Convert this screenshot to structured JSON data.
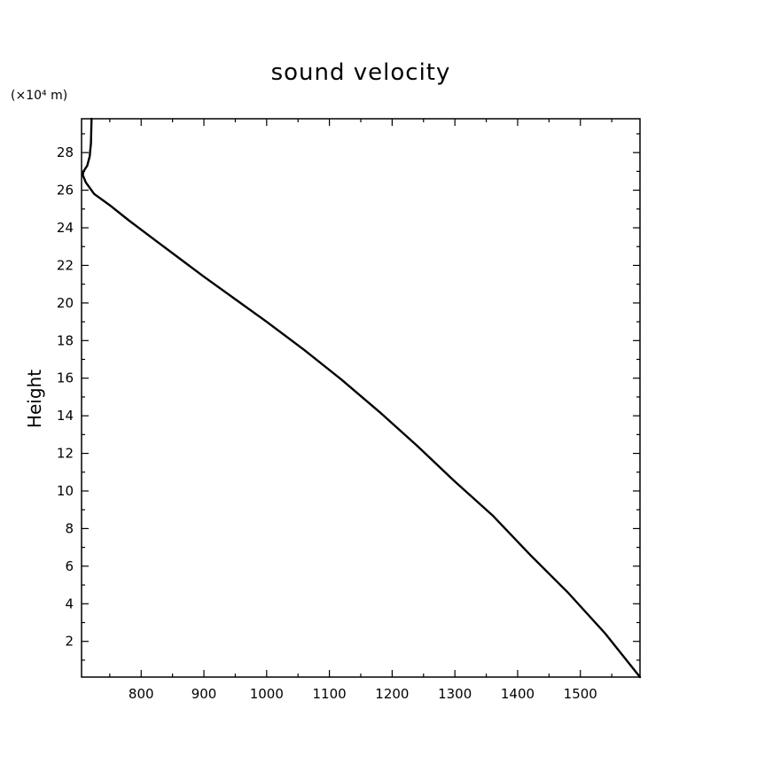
{
  "chart_data": {
    "type": "line",
    "title": "sound velocity",
    "xlabel": "",
    "ylabel": "Height",
    "y_unit": "(×10⁴ m)",
    "xlim": [
      705,
      1595
    ],
    "ylim": [
      0.1,
      29.8
    ],
    "x_ticks": [
      800,
      900,
      1000,
      1100,
      1200,
      1300,
      1400,
      1500
    ],
    "x_tick_labels": [
      "800",
      "900",
      "1000",
      "1100",
      "1200",
      "1300",
      "1400",
      "1500"
    ],
    "x_minor_step": 50,
    "y_ticks": [
      2,
      4,
      6,
      8,
      10,
      12,
      14,
      16,
      18,
      20,
      22,
      24,
      26,
      28
    ],
    "y_tick_labels": [
      "2",
      "4",
      "6",
      "8",
      "10",
      "12",
      "14",
      "16",
      "18",
      "20",
      "22",
      "24",
      "26",
      "28"
    ],
    "y_minor_step": 1,
    "grid": false,
    "series": [
      {
        "color": "#000000",
        "points": [
          [
            1595,
            0.1
          ],
          [
            1540,
            2.4
          ],
          [
            1480,
            4.6
          ],
          [
            1420,
            6.6
          ],
          [
            1360,
            8.7
          ],
          [
            1300,
            10.5
          ],
          [
            1240,
            12.4
          ],
          [
            1180,
            14.2
          ],
          [
            1120,
            15.9
          ],
          [
            1060,
            17.5
          ],
          [
            1000,
            19.0
          ],
          [
            950,
            20.2
          ],
          [
            900,
            21.4
          ],
          [
            860,
            22.4
          ],
          [
            820,
            23.4
          ],
          [
            780,
            24.4
          ],
          [
            750,
            25.2
          ],
          [
            725,
            25.8
          ],
          [
            712,
            26.4
          ],
          [
            707,
            26.8
          ],
          [
            708,
            27.0
          ],
          [
            714,
            27.3
          ],
          [
            718,
            27.8
          ],
          [
            720,
            28.5
          ],
          [
            721,
            29.8
          ]
        ]
      }
    ]
  }
}
